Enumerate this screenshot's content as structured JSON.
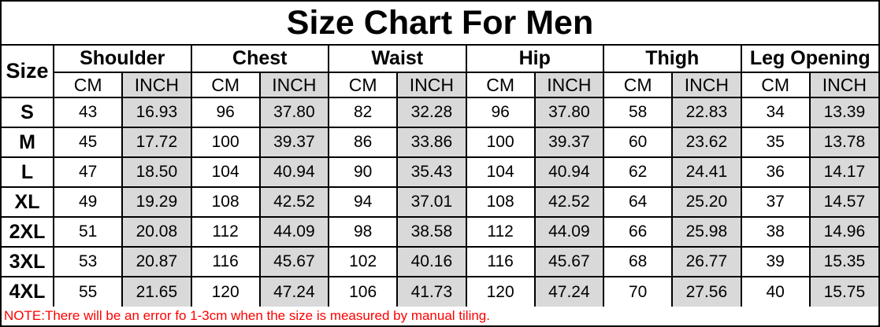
{
  "title": "Size Chart For Men",
  "note": "NOTE:There will be an error fo 1-3cm when the size is measured by manual tiling.",
  "colors": {
    "inch_column_bg": "#d9d9d9",
    "note_text": "#ff0000",
    "border": "#000000",
    "background": "#ffffff"
  },
  "table": {
    "corner_label": "Size",
    "groups": [
      "Shoulder",
      "Chest",
      "Waist",
      "Hip",
      "Thigh",
      "Leg Opening"
    ],
    "unit_cm": "CM",
    "unit_inch": "INCH",
    "rows": [
      {
        "size": "S",
        "cells": [
          "43",
          "16.93",
          "96",
          "37.80",
          "82",
          "32.28",
          "96",
          "37.80",
          "58",
          "22.83",
          "34",
          "13.39"
        ]
      },
      {
        "size": "M",
        "cells": [
          "45",
          "17.72",
          "100",
          "39.37",
          "86",
          "33.86",
          "100",
          "39.37",
          "60",
          "23.62",
          "35",
          "13.78"
        ]
      },
      {
        "size": "L",
        "cells": [
          "47",
          "18.50",
          "104",
          "40.94",
          "90",
          "35.43",
          "104",
          "40.94",
          "62",
          "24.41",
          "36",
          "14.17"
        ]
      },
      {
        "size": "XL",
        "cells": [
          "49",
          "19.29",
          "108",
          "42.52",
          "94",
          "37.01",
          "108",
          "42.52",
          "64",
          "25.20",
          "37",
          "14.57"
        ]
      },
      {
        "size": "2XL",
        "cells": [
          "51",
          "20.08",
          "112",
          "44.09",
          "98",
          "38.58",
          "112",
          "44.09",
          "66",
          "25.98",
          "38",
          "14.96"
        ]
      },
      {
        "size": "3XL",
        "cells": [
          "53",
          "20.87",
          "116",
          "45.67",
          "102",
          "40.16",
          "116",
          "45.67",
          "68",
          "26.77",
          "39",
          "15.35"
        ]
      },
      {
        "size": "4XL",
        "cells": [
          "55",
          "21.65",
          "120",
          "47.24",
          "106",
          "41.73",
          "120",
          "47.24",
          "70",
          "27.56",
          "40",
          "15.75"
        ]
      }
    ]
  }
}
